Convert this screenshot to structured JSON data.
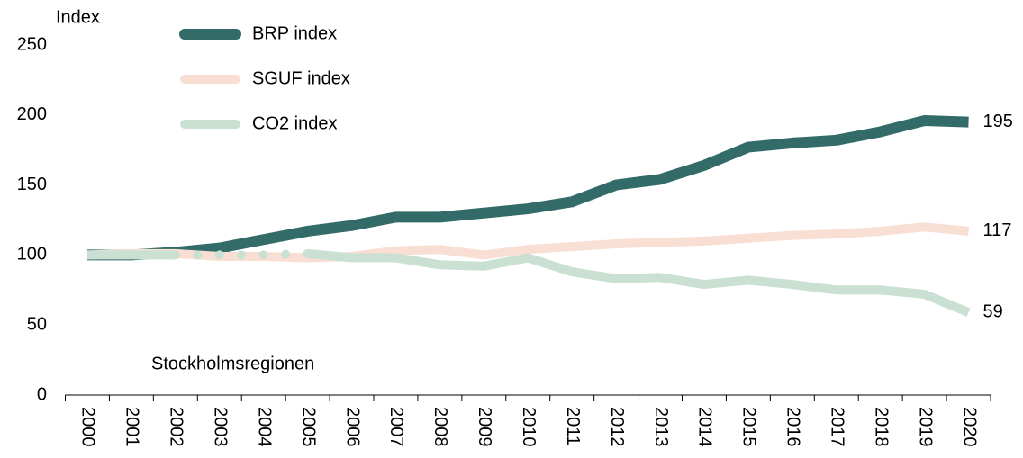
{
  "chart_data": {
    "type": "line",
    "y_label": "Index",
    "annotation": "Stockholmsregionen",
    "categories": [
      "2000",
      "2001",
      "2002",
      "2003",
      "2004",
      "2005",
      "2006",
      "2007",
      "2008",
      "2009",
      "2010",
      "2011",
      "2012",
      "2013",
      "2014",
      "2015",
      "2016",
      "2017",
      "2018",
      "2019",
      "2020"
    ],
    "series": [
      {
        "name": "BRP index",
        "color": "#336b68",
        "values": [
          100,
          100,
          102,
          105,
          111,
          117,
          121,
          127,
          127,
          130,
          133,
          138,
          150,
          154,
          164,
          177,
          180,
          182,
          188,
          196,
          195
        ]
      },
      {
        "name": "SGUF index",
        "color": "#f9ded4",
        "values": [
          100,
          101,
          101,
          99,
          99,
          98,
          99,
          103,
          104,
          100,
          104,
          106,
          108,
          109,
          110,
          112,
          114,
          115,
          117,
          120,
          117
        ]
      },
      {
        "name": "CO2 index",
        "color": "#c9e0d3",
        "dotted_from": "2002",
        "dotted_to": "2005",
        "values": [
          100,
          100,
          100,
          100,
          100,
          101,
          98,
          98,
          93,
          92,
          98,
          88,
          83,
          84,
          79,
          82,
          79,
          75,
          75,
          72,
          59
        ]
      }
    ],
    "ylim": [
      0,
      250
    ],
    "yticks": [
      0,
      50,
      100,
      150,
      200,
      250
    ],
    "legend": "top-left",
    "grid": false
  }
}
